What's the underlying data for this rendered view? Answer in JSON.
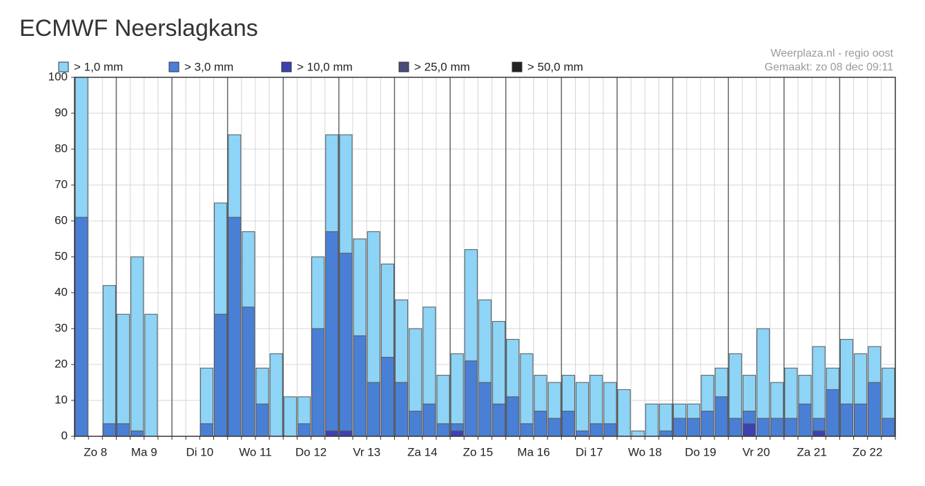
{
  "chart_data": {
    "type": "bar",
    "title": "ECMWF Neerslagkans",
    "source": "Weerplaza.nl - regio oost",
    "made": "Gemaakt: zo 08 dec 09:11",
    "day_labels": [
      "Zo 8",
      "Ma 9",
      "Di 10",
      "Wo 11",
      "Do 12",
      "Vr 13",
      "Za 14",
      "Zo 15",
      "Ma 16",
      "Di 17",
      "Wo 18",
      "Do 19",
      "Vr 20",
      "Za 21",
      "Zo 22"
    ],
    "ylim": [
      0,
      100
    ],
    "yticks": [
      0,
      10,
      20,
      30,
      40,
      50,
      60,
      70,
      80,
      90,
      100
    ],
    "grid": true,
    "legend": "top-left",
    "series": [
      {
        "name": "> 1,0 mm",
        "color": "#8dd4f6",
        "values": [
          100,
          0,
          42,
          34,
          50,
          34,
          0,
          0,
          0,
          19,
          65,
          84,
          57,
          19,
          23,
          11,
          11,
          50,
          84,
          84,
          55,
          57,
          48,
          38,
          30,
          36,
          17,
          23,
          52,
          38,
          32,
          27,
          23,
          17,
          15,
          17,
          15,
          17,
          15,
          13,
          1.5,
          9,
          9,
          9,
          9,
          17,
          19,
          23,
          17,
          30,
          15,
          19,
          17,
          25,
          19,
          27,
          23,
          25,
          19
        ]
      },
      {
        "name": "> 3,0 mm",
        "color": "#4a7fd6",
        "values": [
          61,
          0,
          3.5,
          3.5,
          1.5,
          0,
          0,
          0,
          0,
          3.5,
          34,
          61,
          36,
          9,
          0,
          0,
          3.5,
          30,
          57,
          51,
          28,
          15,
          22,
          15,
          7,
          9,
          3.5,
          3.5,
          21,
          15,
          9,
          11,
          3.5,
          7,
          5,
          7,
          1.5,
          3.5,
          3.5,
          0,
          0,
          0,
          1.5,
          5,
          5,
          7,
          11,
          5,
          7,
          5,
          5,
          5,
          9,
          5,
          13,
          9,
          9,
          15,
          5
        ]
      },
      {
        "name": "> 10,0 mm",
        "color": "#3d42b0",
        "values": [
          0,
          0,
          0,
          0,
          0,
          0,
          0,
          0,
          0,
          0,
          0,
          0,
          0,
          0,
          0,
          0,
          0,
          0,
          1.5,
          1.5,
          0,
          0,
          0,
          0,
          0,
          0,
          0,
          1.5,
          0,
          0,
          0,
          0,
          0,
          0,
          0,
          0,
          0,
          0,
          0,
          0,
          0,
          0,
          0,
          0,
          0,
          0,
          0,
          0,
          3.5,
          0,
          0,
          0,
          0,
          1.5,
          0,
          0,
          0,
          0,
          0
        ]
      },
      {
        "name": "> 25,0 mm",
        "color": "#4b4a7e",
        "values": [
          0,
          0,
          0,
          0,
          0,
          0,
          0,
          0,
          0,
          0,
          0,
          0,
          0,
          0,
          0,
          0,
          0,
          0,
          0,
          0,
          0,
          0,
          0,
          0,
          0,
          0,
          0,
          0,
          0,
          0,
          0,
          0,
          0,
          0,
          0,
          0,
          0,
          0,
          0,
          0,
          0,
          0,
          0,
          0,
          0,
          0,
          0,
          0,
          0,
          0,
          0,
          0,
          0,
          0,
          0,
          0,
          0,
          0,
          0
        ]
      },
      {
        "name": "> 50,0 mm",
        "color": "#222222",
        "values": [
          0,
          0,
          0,
          0,
          0,
          0,
          0,
          0,
          0,
          0,
          0,
          0,
          0,
          0,
          0,
          0,
          0,
          0,
          0,
          0,
          0,
          0,
          0,
          0,
          0,
          0,
          0,
          0,
          0,
          0,
          0,
          0,
          0,
          0,
          0,
          0,
          0,
          0,
          0,
          0,
          0,
          0,
          0,
          0,
          0,
          0,
          0,
          0,
          0,
          0,
          0,
          0,
          0,
          0,
          0,
          0,
          0,
          0,
          0
        ]
      }
    ]
  }
}
